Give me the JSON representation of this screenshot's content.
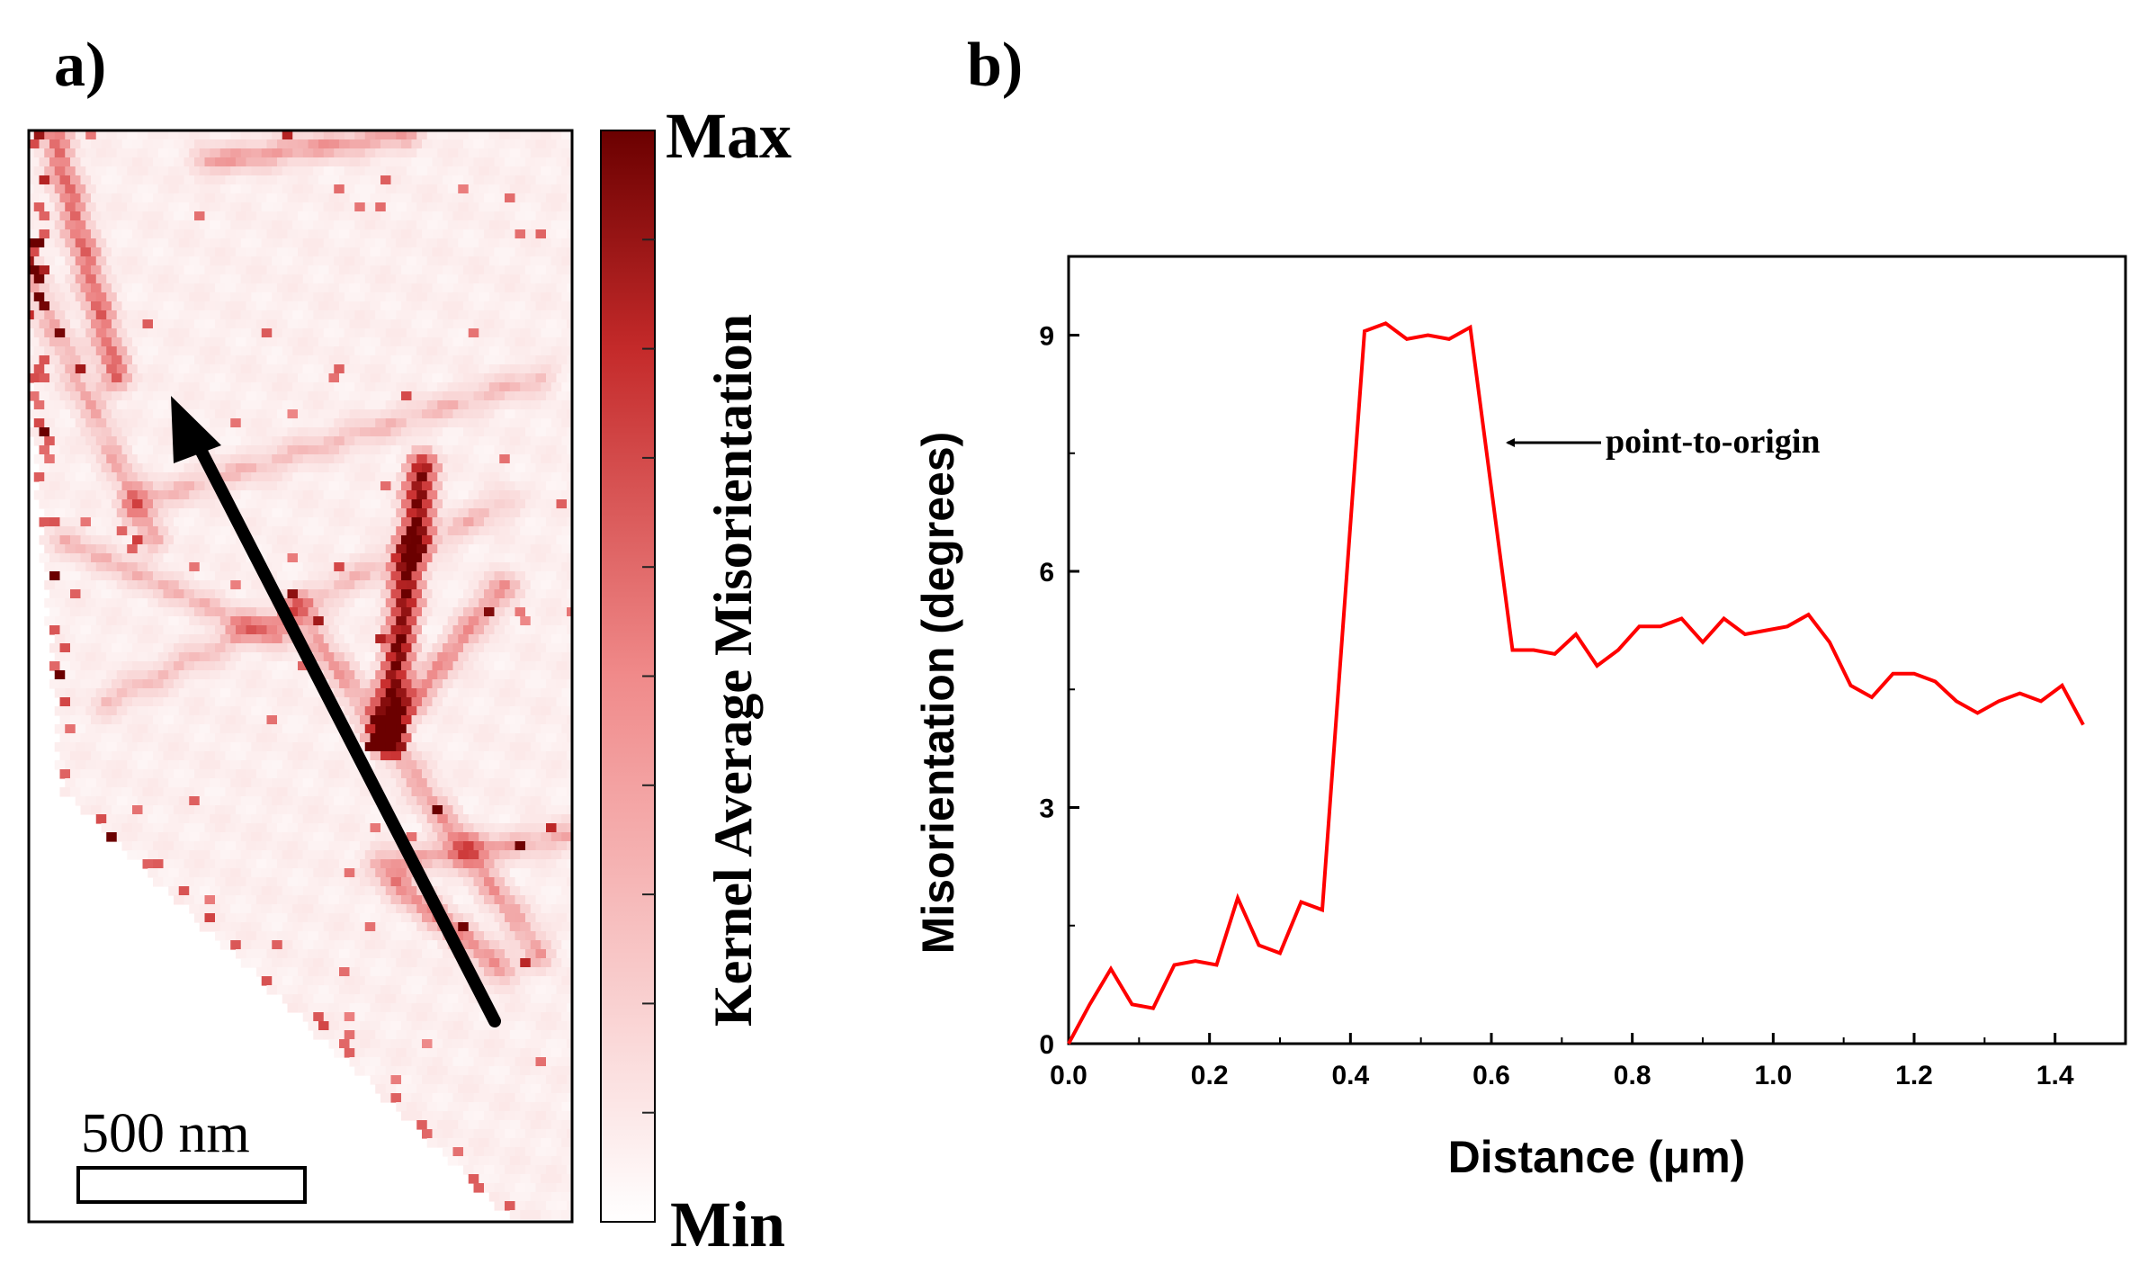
{
  "panel_a": {
    "label": "a)",
    "colorbar": {
      "max_label": "Max",
      "min_label": "Min",
      "title": "Kernel Average Misorientation",
      "color_max": "#6b0000",
      "color_min": "#ffffff"
    },
    "scale_bar": {
      "label": "500 nm"
    },
    "map_colors": {
      "accent": "#d83a3a",
      "dark": "#8a0f12",
      "light": "#f7d5d5"
    }
  },
  "panel_b": {
    "label": "b)",
    "annotation": "point-to-origin"
  },
  "chart_data": {
    "type": "line",
    "title": "",
    "xlabel": "Distance (μm)",
    "ylabel": "Misorientation (degrees)",
    "xlim": [
      0.0,
      1.5
    ],
    "ylim": [
      0,
      10
    ],
    "xticks": [
      "0.0",
      "0.2",
      "0.4",
      "0.6",
      "0.8",
      "1.0",
      "1.2",
      "1.4"
    ],
    "yticks": [
      "0",
      "3",
      "6",
      "9"
    ],
    "series": [
      {
        "name": "misorientation profile",
        "color": "#ff0000",
        "x": [
          0.0,
          0.03,
          0.06,
          0.09,
          0.12,
          0.15,
          0.18,
          0.21,
          0.24,
          0.27,
          0.3,
          0.33,
          0.36,
          0.42,
          0.45,
          0.48,
          0.51,
          0.54,
          0.57,
          0.63,
          0.66,
          0.69,
          0.72,
          0.75,
          0.78,
          0.81,
          0.84,
          0.87,
          0.9,
          0.93,
          0.96,
          0.99,
          1.02,
          1.05,
          1.08,
          1.11,
          1.14,
          1.17,
          1.2,
          1.23,
          1.26,
          1.29,
          1.32,
          1.35,
          1.38,
          1.41,
          1.44
        ],
        "y": [
          0.0,
          0.5,
          0.95,
          0.5,
          0.45,
          1.0,
          1.05,
          1.0,
          1.85,
          1.25,
          1.15,
          1.8,
          1.7,
          9.05,
          9.15,
          8.95,
          9.0,
          8.95,
          9.1,
          5.0,
          5.0,
          4.95,
          5.2,
          4.8,
          5.0,
          5.3,
          5.3,
          5.4,
          5.1,
          5.4,
          5.2,
          5.25,
          5.3,
          5.45,
          5.1,
          4.55,
          4.4,
          4.7,
          4.7,
          4.6,
          4.35,
          4.2,
          4.35,
          4.45,
          4.35,
          4.55,
          4.05
        ]
      }
    ]
  }
}
